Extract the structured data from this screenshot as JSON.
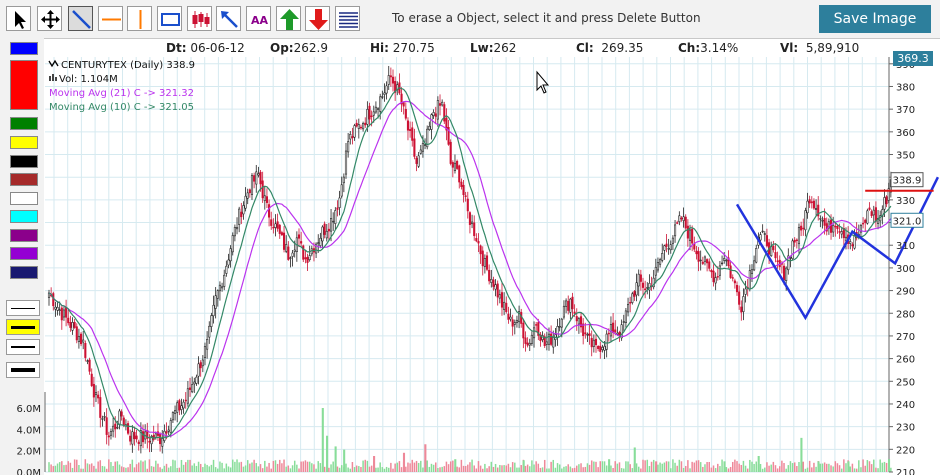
{
  "toolbar": {
    "tools": [
      {
        "id": "pointer",
        "icon": "cursor-arrow-icon"
      },
      {
        "id": "move",
        "icon": "move-arrows-icon"
      },
      {
        "id": "trendline",
        "icon": "trendline-icon",
        "selected": true
      },
      {
        "id": "hline",
        "icon": "horizontal-line-icon"
      },
      {
        "id": "vline",
        "icon": "vertical-line-icon"
      },
      {
        "id": "rectangle",
        "icon": "rectangle-icon"
      },
      {
        "id": "candles",
        "icon": "candlestick-icon"
      },
      {
        "id": "arrowline",
        "icon": "arrow-line-icon"
      },
      {
        "id": "text",
        "icon": "text-aa-icon",
        "label": "AA"
      },
      {
        "id": "uparrow",
        "icon": "green-up-arrow-icon"
      },
      {
        "id": "downarrow",
        "icon": "red-down-arrow-icon"
      },
      {
        "id": "fib",
        "icon": "fibonacci-lines-icon"
      }
    ],
    "hint": "To erase a Object, select it and press Delete Button",
    "save_label": "Save Image"
  },
  "palette": {
    "colors": [
      "#0000ff",
      "#ff0000",
      "#008000",
      "#ffff00",
      "#000000",
      "#a52a2a",
      "#ffffff",
      "#00ffff",
      "#8b008b",
      "#9400d3",
      "#191970"
    ],
    "line_widths": [
      1,
      3,
      2,
      4
    ]
  },
  "ohlc": {
    "dt_label": "Dt:",
    "dt": "06-06-12",
    "op_label": "Op:",
    "op": "262.9",
    "hi_label": "Hi:",
    "hi": "270.75",
    "lw_label": "Lw:",
    "lw": "262",
    "cl_label": "Cl:",
    "cl": "269.35",
    "ch_label": "Ch:",
    "ch": "3.14%",
    "vl_label": "Vl:",
    "vl": "5,89,910"
  },
  "legend": {
    "symbol": "CENTURYTEX (Daily) 338.9",
    "volume": "Vol: 1.104M",
    "ma21": "Moving Avg (21) C -> 321.32",
    "ma10": "Moving Avg (10) C -> 321.05"
  },
  "colors": {
    "bull": "#ffffff",
    "bear": "#cc1133",
    "wick": "#000000",
    "ma21": "#bb33ee",
    "ma10": "#338866",
    "vol_up": "#88dd99",
    "vol_down": "#ee8899",
    "grid": "#d6eaf0",
    "tag": "#2d7f9c"
  },
  "chart_data": {
    "type": "candlestick",
    "y_ticks": [
      "210",
      "220",
      "230",
      "240",
      "250",
      "260",
      "270",
      "280",
      "290",
      "300",
      "310",
      "320",
      "330",
      "340",
      "350",
      "360",
      "370",
      "380",
      "390"
    ],
    "ylim": [
      210,
      393
    ],
    "volume_ticks": [
      "0.0M",
      "2.0M",
      "4.0M",
      "6.0M"
    ],
    "volume_ylim": [
      0,
      7.5
    ],
    "last_price_tag": "369.3",
    "close_tag": "338.9",
    "ma_tag": "321.0",
    "grid": true,
    "legend_position": "top-left",
    "anchors": [
      [
        0,
        289
      ],
      [
        6,
        280
      ],
      [
        11,
        274
      ],
      [
        16,
        267
      ],
      [
        22,
        242
      ],
      [
        28,
        226
      ],
      [
        34,
        235
      ],
      [
        38,
        226
      ],
      [
        45,
        225
      ],
      [
        52,
        225
      ],
      [
        58,
        235
      ],
      [
        64,
        242
      ],
      [
        70,
        256
      ],
      [
        74,
        266
      ],
      [
        78,
        286
      ],
      [
        82,
        298
      ],
      [
        86,
        313
      ],
      [
        90,
        326
      ],
      [
        94,
        336
      ],
      [
        98,
        341
      ],
      [
        102,
        326
      ],
      [
        107,
        316
      ],
      [
        112,
        306
      ],
      [
        116,
        313
      ],
      [
        120,
        304
      ],
      [
        124,
        310
      ],
      [
        128,
        316
      ],
      [
        132,
        321
      ],
      [
        136,
        331
      ],
      [
        140,
        356
      ],
      [
        144,
        361
      ],
      [
        148,
        366
      ],
      [
        152,
        371
      ],
      [
        156,
        376
      ],
      [
        160,
        384
      ],
      [
        164,
        376
      ],
      [
        168,
        361
      ],
      [
        172,
        346
      ],
      [
        176,
        354
      ],
      [
        180,
        369
      ],
      [
        184,
        372
      ],
      [
        188,
        346
      ],
      [
        192,
        341
      ],
      [
        196,
        324
      ],
      [
        200,
        314
      ],
      [
        204,
        301
      ],
      [
        208,
        294
      ],
      [
        212,
        284
      ],
      [
        216,
        276
      ],
      [
        220,
        278
      ],
      [
        224,
        266
      ],
      [
        228,
        276
      ],
      [
        232,
        266
      ],
      [
        236,
        270
      ],
      [
        240,
        280
      ],
      [
        244,
        286
      ],
      [
        248,
        276
      ],
      [
        252,
        268
      ],
      [
        256,
        264
      ],
      [
        260,
        268
      ],
      [
        264,
        273
      ],
      [
        268,
        272
      ],
      [
        272,
        286
      ],
      [
        276,
        294
      ],
      [
        280,
        291
      ],
      [
        284,
        298
      ],
      [
        288,
        309
      ],
      [
        292,
        314
      ],
      [
        296,
        322
      ],
      [
        300,
        314
      ],
      [
        304,
        306
      ],
      [
        308,
        300
      ],
      [
        312,
        296
      ],
      [
        316,
        306
      ],
      [
        320,
        295
      ],
      [
        324,
        284
      ],
      [
        328,
        298
      ],
      [
        332,
        314
      ],
      [
        336,
        312
      ],
      [
        340,
        302
      ],
      [
        344,
        298
      ],
      [
        348,
        311
      ],
      [
        352,
        316
      ],
      [
        356,
        332
      ],
      [
        360,
        326
      ],
      [
        364,
        316
      ],
      [
        368,
        321
      ],
      [
        372,
        316
      ],
      [
        376,
        311
      ],
      [
        380,
        316
      ],
      [
        384,
        326
      ],
      [
        388,
        321
      ],
      [
        392,
        331
      ],
      [
        394,
        338.9
      ]
    ],
    "volume_spikes": [
      [
        128,
        6.0,
        "up"
      ],
      [
        130,
        3.4,
        "up"
      ],
      [
        134,
        2.4,
        "up"
      ],
      [
        138,
        2.1,
        "up"
      ],
      [
        152,
        1.5,
        "down"
      ],
      [
        166,
        1.8,
        "down"
      ],
      [
        176,
        2.6,
        "down"
      ],
      [
        190,
        1.2,
        "up"
      ],
      [
        222,
        1.1,
        "up"
      ],
      [
        262,
        1.2,
        "up"
      ],
      [
        274,
        2.3,
        "up"
      ],
      [
        284,
        1.0,
        "down"
      ],
      [
        316,
        1.0,
        "up"
      ],
      [
        332,
        1.5,
        "up"
      ],
      [
        352,
        3.2,
        "up"
      ],
      [
        360,
        1.0,
        "up"
      ],
      [
        374,
        1.0,
        "up"
      ],
      [
        393,
        1.2,
        "up"
      ]
    ],
    "drawings": {
      "blue_zigzag": [
        [
          322,
          328
        ],
        [
          354,
          278
        ],
        [
          376,
          316
        ],
        [
          396,
          302
        ],
        [
          416,
          340
        ]
      ],
      "red_hline": [
        [
          382,
          334
        ],
        [
          414,
          334
        ]
      ]
    },
    "n_bars": 395
  }
}
